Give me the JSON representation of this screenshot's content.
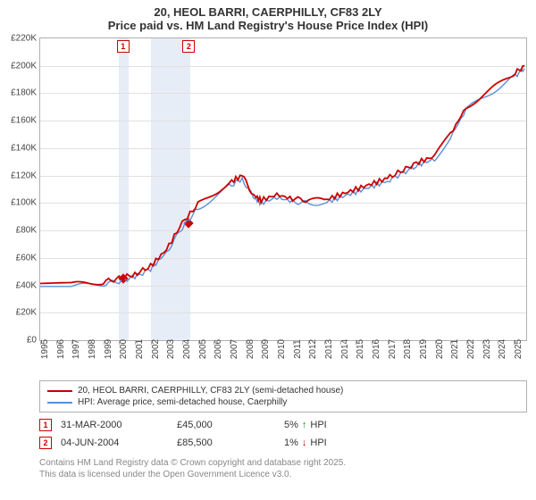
{
  "title": {
    "line1": "20, HEOL BARRI, CAERPHILLY, CF83 2LY",
    "line2": "Price paid vs. HM Land Registry's House Price Index (HPI)"
  },
  "chart": {
    "type": "line",
    "background_color": "#ffffff",
    "grid_color": "#e0e0e0",
    "border_color": "#b0b0b0",
    "x": {
      "min": 1995,
      "max": 2025.8,
      "ticks": [
        1995,
        1996,
        1997,
        1998,
        1999,
        2000,
        2001,
        2002,
        2003,
        2004,
        2005,
        2006,
        2007,
        2008,
        2009,
        2010,
        2011,
        2012,
        2013,
        2014,
        2015,
        2016,
        2017,
        2018,
        2019,
        2020,
        2021,
        2022,
        2023,
        2024,
        2025
      ]
    },
    "y": {
      "min": 0,
      "max": 220000,
      "ticks": [
        0,
        20000,
        40000,
        60000,
        80000,
        100000,
        120000,
        140000,
        160000,
        180000,
        200000,
        220000
      ],
      "tick_labels": [
        "£0",
        "£20K",
        "£40K",
        "£60K",
        "£80K",
        "£100K",
        "£120K",
        "£140K",
        "£160K",
        "£180K",
        "£200K",
        "£220K"
      ]
    },
    "shaded_ranges": [
      {
        "from": 2000.0,
        "to": 2000.6
      },
      {
        "from": 2002.0,
        "to": 2004.5
      }
    ],
    "series": [
      {
        "name": "hpi",
        "color": "#5b8fd6",
        "width": 1.4,
        "points": [
          [
            1995,
            38000
          ],
          [
            1996,
            38500
          ],
          [
            1997,
            39000
          ],
          [
            1998,
            40000
          ],
          [
            1999,
            41000
          ],
          [
            2000,
            43000
          ],
          [
            2001,
            46000
          ],
          [
            2002,
            52000
          ],
          [
            2003,
            64000
          ],
          [
            2004,
            82000
          ],
          [
            2005,
            96000
          ],
          [
            2006,
            104000
          ],
          [
            2007,
            112000
          ],
          [
            2007.8,
            118000
          ],
          [
            2008.5,
            104000
          ],
          [
            2009,
            100000
          ],
          [
            2010,
            104000
          ],
          [
            2011,
            101000
          ],
          [
            2012,
            100000
          ],
          [
            2013,
            100000
          ],
          [
            2014,
            104000
          ],
          [
            2015,
            108000
          ],
          [
            2016,
            112000
          ],
          [
            2017,
            116000
          ],
          [
            2018,
            122000
          ],
          [
            2019,
            128000
          ],
          [
            2020,
            132000
          ],
          [
            2021,
            148000
          ],
          [
            2022,
            168000
          ],
          [
            2023,
            176000
          ],
          [
            2024,
            184000
          ],
          [
            2025,
            192000
          ],
          [
            2025.7,
            198000
          ]
        ]
      },
      {
        "name": "price_paid",
        "color": "#cc0000",
        "width": 1.8,
        "points": [
          [
            1995,
            39500
          ],
          [
            1996,
            40000
          ],
          [
            1997,
            40500
          ],
          [
            1998,
            41500
          ],
          [
            1999,
            42500
          ],
          [
            2000,
            45000
          ],
          [
            2001,
            48000
          ],
          [
            2002,
            54000
          ],
          [
            2003,
            66000
          ],
          [
            2004,
            85500
          ],
          [
            2005,
            99000
          ],
          [
            2006,
            107000
          ],
          [
            2007,
            115000
          ],
          [
            2007.8,
            120000
          ],
          [
            2008.5,
            106000
          ],
          [
            2009,
            102000
          ],
          [
            2010,
            106000
          ],
          [
            2011,
            103000
          ],
          [
            2012,
            102000
          ],
          [
            2013,
            102000
          ],
          [
            2014,
            106000
          ],
          [
            2015,
            110000
          ],
          [
            2016,
            114000
          ],
          [
            2017,
            118000
          ],
          [
            2018,
            124000
          ],
          [
            2019,
            130000
          ],
          [
            2020,
            134000
          ],
          [
            2021,
            150000
          ],
          [
            2022,
            170000
          ],
          [
            2023,
            178000
          ],
          [
            2024,
            186000
          ],
          [
            2025,
            194000
          ],
          [
            2025.7,
            200000
          ]
        ]
      }
    ],
    "markers": [
      {
        "n": "1",
        "x": 2000.25,
        "y": 45000
      },
      {
        "n": "2",
        "x": 2004.42,
        "y": 85500
      }
    ]
  },
  "legend": {
    "items": [
      {
        "color": "#cc0000",
        "label": "20, HEOL BARRI, CAERPHILLY, CF83 2LY (semi-detached house)"
      },
      {
        "color": "#5b8fd6",
        "label": "HPI: Average price, semi-detached house, Caerphilly"
      }
    ]
  },
  "events": [
    {
      "n": "1",
      "date": "31-MAR-2000",
      "price": "£45,000",
      "pct": "5%",
      "dir": "↑",
      "dir_color": "#1a8f1a",
      "suffix": "HPI"
    },
    {
      "n": "2",
      "date": "04-JUN-2004",
      "price": "£85,500",
      "pct": "1%",
      "dir": "↓",
      "dir_color": "#cc0000",
      "suffix": "HPI"
    }
  ],
  "attribution": {
    "line1": "Contains HM Land Registry data © Crown copyright and database right 2025.",
    "line2": "This data is licensed under the Open Government Licence v3.0."
  }
}
